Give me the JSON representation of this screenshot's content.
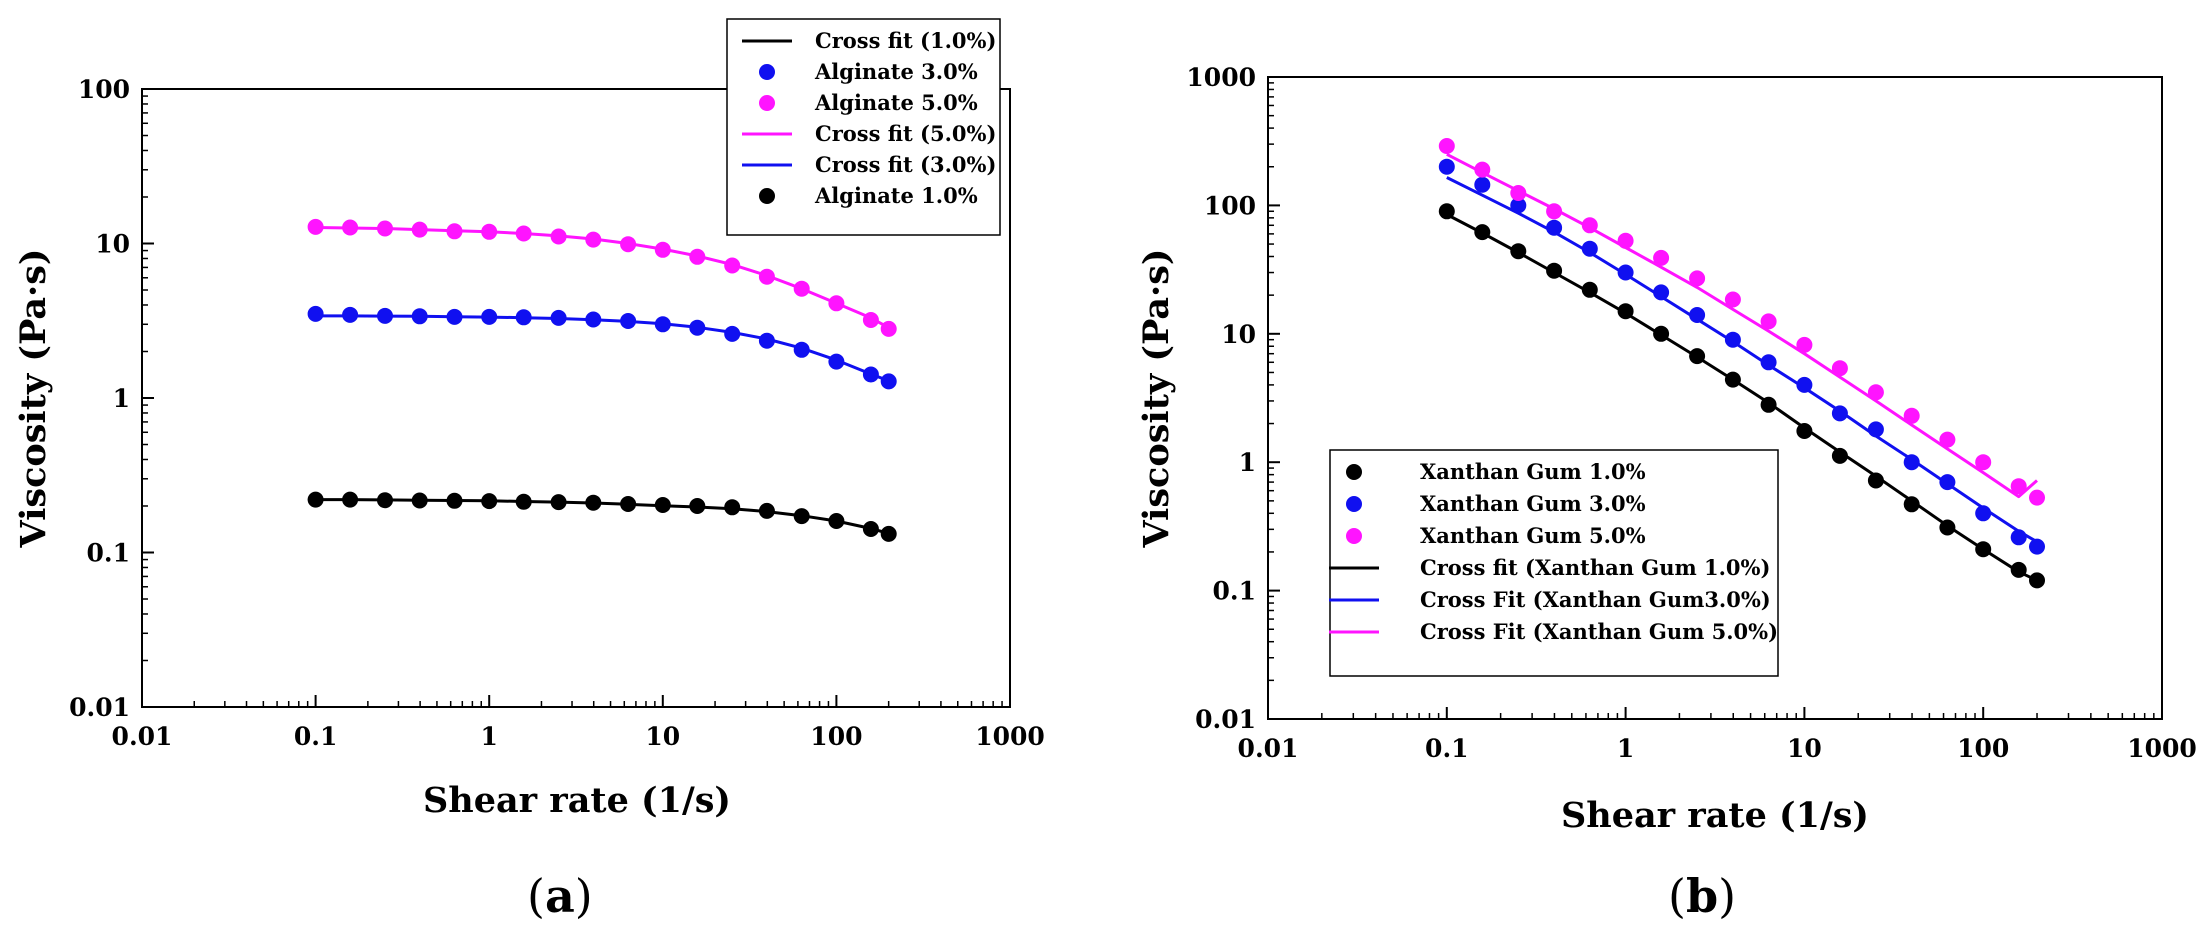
{
  "chart_data": [
    {
      "type": "scatter",
      "caption_letter": "a",
      "xlabel": "Shear rate (1/s)",
      "ylabel": "Viscosity (Pa·s)",
      "xscale": "log",
      "yscale": "log",
      "xlim": [
        0.01,
        1000
      ],
      "ylim": [
        0.01,
        100
      ],
      "xticks": [
        "0.01",
        "0.1",
        "1",
        "10",
        "100",
        "1000"
      ],
      "yticks": [
        "0.01",
        "0.1",
        "1",
        "10",
        "100"
      ],
      "legend_position": "top-right",
      "legend": [
        {
          "label": "Cross fit (1.0%)",
          "kind": "line",
          "color": "#000000"
        },
        {
          "label": "Alginate 3.0%",
          "kind": "marker",
          "color": "#1010f0"
        },
        {
          "label": "Alginate 5.0%",
          "kind": "marker",
          "color": "#ff14ff"
        },
        {
          "label": "Cross fit (5.0%)",
          "kind": "line",
          "color": "#ff14ff"
        },
        {
          "label": "Cross fit (3.0%)",
          "kind": "line",
          "color": "#1010f0"
        },
        {
          "label": "Alginate 1.0%",
          "kind": "marker",
          "color": "#000000"
        }
      ],
      "x": [
        0.1,
        0.158,
        0.251,
        0.398,
        0.631,
        1,
        1.58,
        2.51,
        3.98,
        6.31,
        10,
        15.8,
        25.1,
        39.8,
        63.1,
        100,
        158,
        200
      ],
      "series": [
        {
          "name": "Alginate 1.0%",
          "color": "#000000",
          "values": [
            0.22,
            0.22,
            0.218,
            0.217,
            0.216,
            0.215,
            0.213,
            0.212,
            0.21,
            0.206,
            0.203,
            0.2,
            0.196,
            0.186,
            0.172,
            0.16,
            0.142,
            0.132
          ]
        },
        {
          "name": "Alginate 3.0%",
          "color": "#1010f0",
          "values": [
            3.5,
            3.45,
            3.4,
            3.38,
            3.35,
            3.35,
            3.33,
            3.3,
            3.22,
            3.15,
            3.0,
            2.85,
            2.6,
            2.35,
            2.05,
            1.72,
            1.42,
            1.28
          ]
        },
        {
          "name": "Alginate 5.0%",
          "color": "#ff14ff",
          "values": [
            12.8,
            12.7,
            12.5,
            12.3,
            12.0,
            11.9,
            11.6,
            11.1,
            10.6,
            9.9,
            9.1,
            8.2,
            7.2,
            6.1,
            5.1,
            4.1,
            3.2,
            2.8
          ]
        }
      ],
      "fits": [
        {
          "name": "Cross fit (1.0%)",
          "color": "#000000",
          "values": [
            0.22,
            0.22,
            0.219,
            0.218,
            0.217,
            0.216,
            0.214,
            0.212,
            0.209,
            0.205,
            0.201,
            0.197,
            0.192,
            0.184,
            0.173,
            0.16,
            0.143,
            0.133
          ]
        },
        {
          "name": "Cross fit (3.0%)",
          "color": "#1010f0",
          "values": [
            3.4,
            3.4,
            3.39,
            3.38,
            3.36,
            3.34,
            3.31,
            3.27,
            3.21,
            3.13,
            3.02,
            2.87,
            2.66,
            2.41,
            2.1,
            1.76,
            1.43,
            1.29
          ]
        },
        {
          "name": "Cross fit (5.0%)",
          "color": "#ff14ff",
          "values": [
            12.7,
            12.6,
            12.5,
            12.3,
            12.1,
            11.9,
            11.6,
            11.2,
            10.7,
            10.0,
            9.2,
            8.3,
            7.3,
            6.2,
            5.1,
            4.1,
            3.3,
            2.85
          ]
        }
      ]
    },
    {
      "type": "scatter",
      "caption_letter": "b",
      "xlabel": "Shear rate (1/s)",
      "ylabel": "Viscosity (Pa·s)",
      "xscale": "log",
      "yscale": "log",
      "xlim": [
        0.01,
        1000
      ],
      "ylim": [
        0.01,
        1000
      ],
      "xticks": [
        "0.01",
        "0.1",
        "1",
        "10",
        "100",
        "1000"
      ],
      "yticks": [
        "0.01",
        "0.1",
        "1",
        "10",
        "100",
        "1000"
      ],
      "legend_position": "lower-left",
      "legend": [
        {
          "label": "Xanthan Gum 1.0%",
          "kind": "marker",
          "color": "#000000"
        },
        {
          "label": "Xanthan Gum  3.0%",
          "kind": "marker",
          "color": "#1010f0"
        },
        {
          "label": "Xanthan Gum 5.0%",
          "kind": "marker",
          "color": "#ff14ff"
        },
        {
          "label": "Cross fit (Xanthan Gum 1.0%)",
          "kind": "line",
          "color": "#000000"
        },
        {
          "label": "Cross Fit (Xanthan Gum3.0%)",
          "kind": "line",
          "color": "#1010f0"
        },
        {
          "label": "Cross Fit (Xanthan Gum 5.0%)",
          "kind": "line",
          "color": "#ff14ff"
        }
      ],
      "x": [
        0.1,
        0.158,
        0.251,
        0.398,
        0.631,
        1,
        1.58,
        2.51,
        3.98,
        6.31,
        10,
        15.8,
        25.1,
        39.8,
        63.1,
        100,
        158,
        200
      ],
      "series": [
        {
          "name": "Xanthan Gum 1.0%",
          "color": "#000000",
          "values": [
            90,
            62,
            44,
            31,
            22,
            15,
            10,
            6.7,
            4.4,
            2.8,
            1.75,
            1.12,
            0.72,
            0.47,
            0.31,
            0.21,
            0.145,
            0.12
          ]
        },
        {
          "name": "Xanthan Gum  3.0%",
          "color": "#1010f0",
          "values": [
            200,
            145,
            100,
            67,
            46,
            30,
            21,
            14,
            9.0,
            6.0,
            4.0,
            2.4,
            1.8,
            1.0,
            0.7,
            0.4,
            0.26,
            0.22
          ]
        },
        {
          "name": "Xanthan Gum 5.0%",
          "color": "#ff14ff",
          "values": [
            290,
            190,
            125,
            90,
            70,
            53,
            39,
            27,
            18.5,
            12.5,
            8.2,
            5.4,
            3.5,
            2.3,
            1.5,
            1.0,
            0.65,
            0.53
          ]
        }
      ],
      "fits": [
        {
          "name": "Cross fit (Xanthan Gum 1.0%)",
          "color": "#000000",
          "values": [
            85,
            61,
            43,
            30,
            21,
            14.5,
            9.8,
            6.6,
            4.4,
            2.9,
            1.85,
            1.2,
            0.78,
            0.5,
            0.32,
            0.21,
            0.14,
            0.12
          ]
        },
        {
          "name": "Cross Fit (Xanthan Gum3.0%)",
          "color": "#1010f0",
          "values": [
            165,
            120,
            87,
            62,
            43,
            29,
            19.5,
            13,
            8.7,
            5.7,
            3.8,
            2.5,
            1.6,
            1.05,
            0.68,
            0.44,
            0.29,
            0.24
          ]
        },
        {
          "name": "Cross Fit (Xanthan Gum 5.0%)",
          "color": "#ff14ff",
          "values": [
            250,
            180,
            130,
            94,
            67,
            47,
            33,
            23,
            15.5,
            10.5,
            7.0,
            4.6,
            3.0,
            1.95,
            1.27,
            0.83,
            0.54,
            0.72
          ]
        }
      ]
    }
  ]
}
